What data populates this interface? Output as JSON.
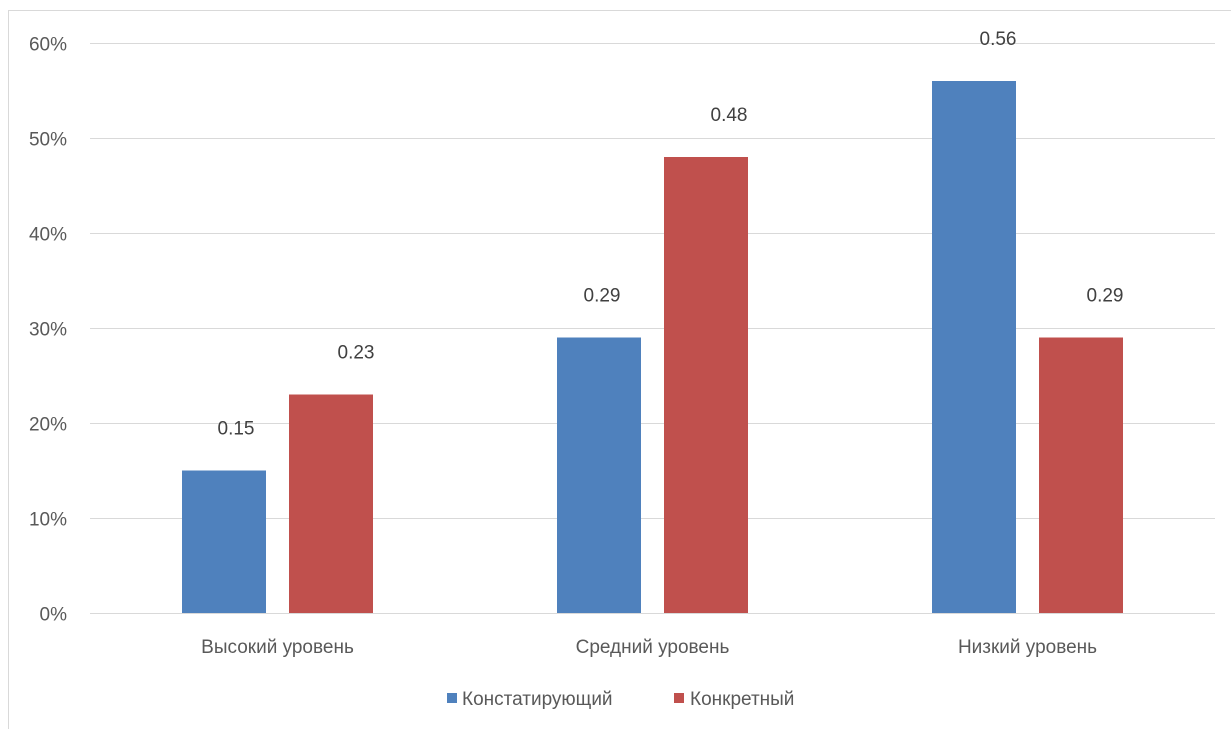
{
  "chart_data": {
    "type": "bar",
    "categories": [
      "Высокий уровень",
      "Средний уровень",
      "Низкий уровень"
    ],
    "series": [
      {
        "name": "Констатирующий",
        "values": [
          0.15,
          0.29,
          0.56
        ],
        "color": "#4F81BD"
      },
      {
        "name": "Конкретный",
        "values": [
          0.23,
          0.48,
          0.29
        ],
        "color": "#C0504D"
      }
    ],
    "y_ticks": [
      0,
      0.1,
      0.2,
      0.3,
      0.4,
      0.5,
      0.6
    ],
    "y_tick_labels": [
      "0%",
      "10%",
      "20%",
      "30%",
      "40%",
      "50%",
      "60%"
    ],
    "ylim": [
      0,
      0.6
    ],
    "grid": true,
    "legend": "bottom",
    "data_labels": true
  },
  "colors": {
    "gridline": "#D9D9D9",
    "border": "#D9D9D9"
  }
}
